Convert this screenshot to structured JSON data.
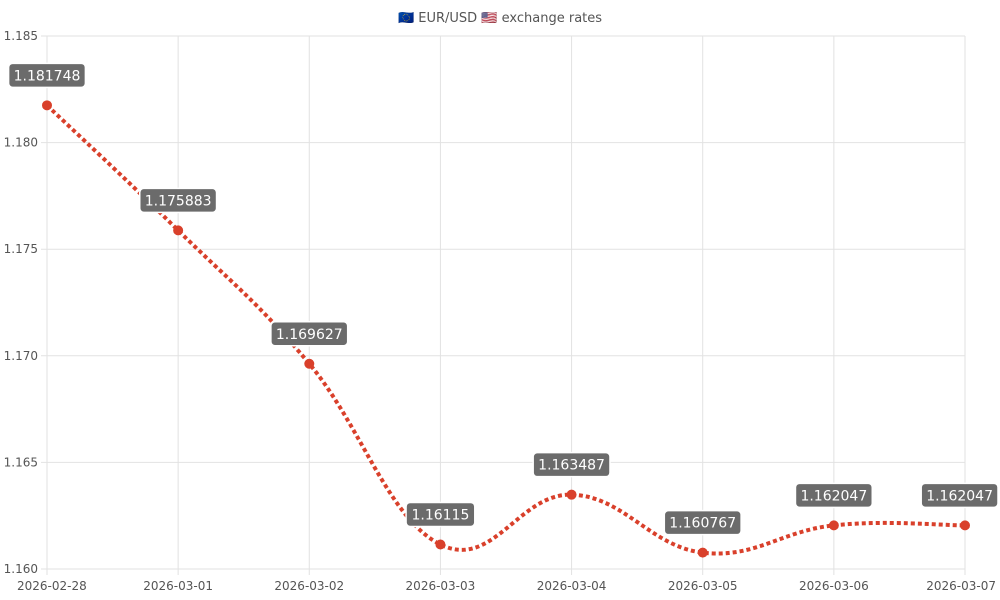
{
  "chart_data": {
    "type": "line",
    "title": "🇪🇺 EUR/USD 🇺🇸 exchange rates",
    "x": [
      "2026-02-28",
      "2026-03-01",
      "2026-03-02",
      "2026-03-03",
      "2026-03-04",
      "2026-03-05",
      "2026-03-06",
      "2026-03-07"
    ],
    "values": [
      1.181748,
      1.175883,
      1.169627,
      1.16115,
      1.163487,
      1.160767,
      1.162047,
      1.162047
    ],
    "data_labels": [
      "1.181748",
      "1.175883",
      "1.169627",
      "1.16115",
      "1.163487",
      "1.160767",
      "1.162047",
      "1.162047"
    ],
    "ylim": [
      1.16,
      1.185
    ],
    "yticks": [
      1.16,
      1.165,
      1.17,
      1.175,
      1.18,
      1.185
    ],
    "ytick_labels": [
      "1.160",
      "1.165",
      "1.170",
      "1.175",
      "1.180",
      "1.185"
    ],
    "xlabel": "",
    "ylabel": "",
    "grid": true,
    "line_style": "dotted",
    "line_color": "#d9402b",
    "label_bg_color": "#6b6b6b"
  }
}
